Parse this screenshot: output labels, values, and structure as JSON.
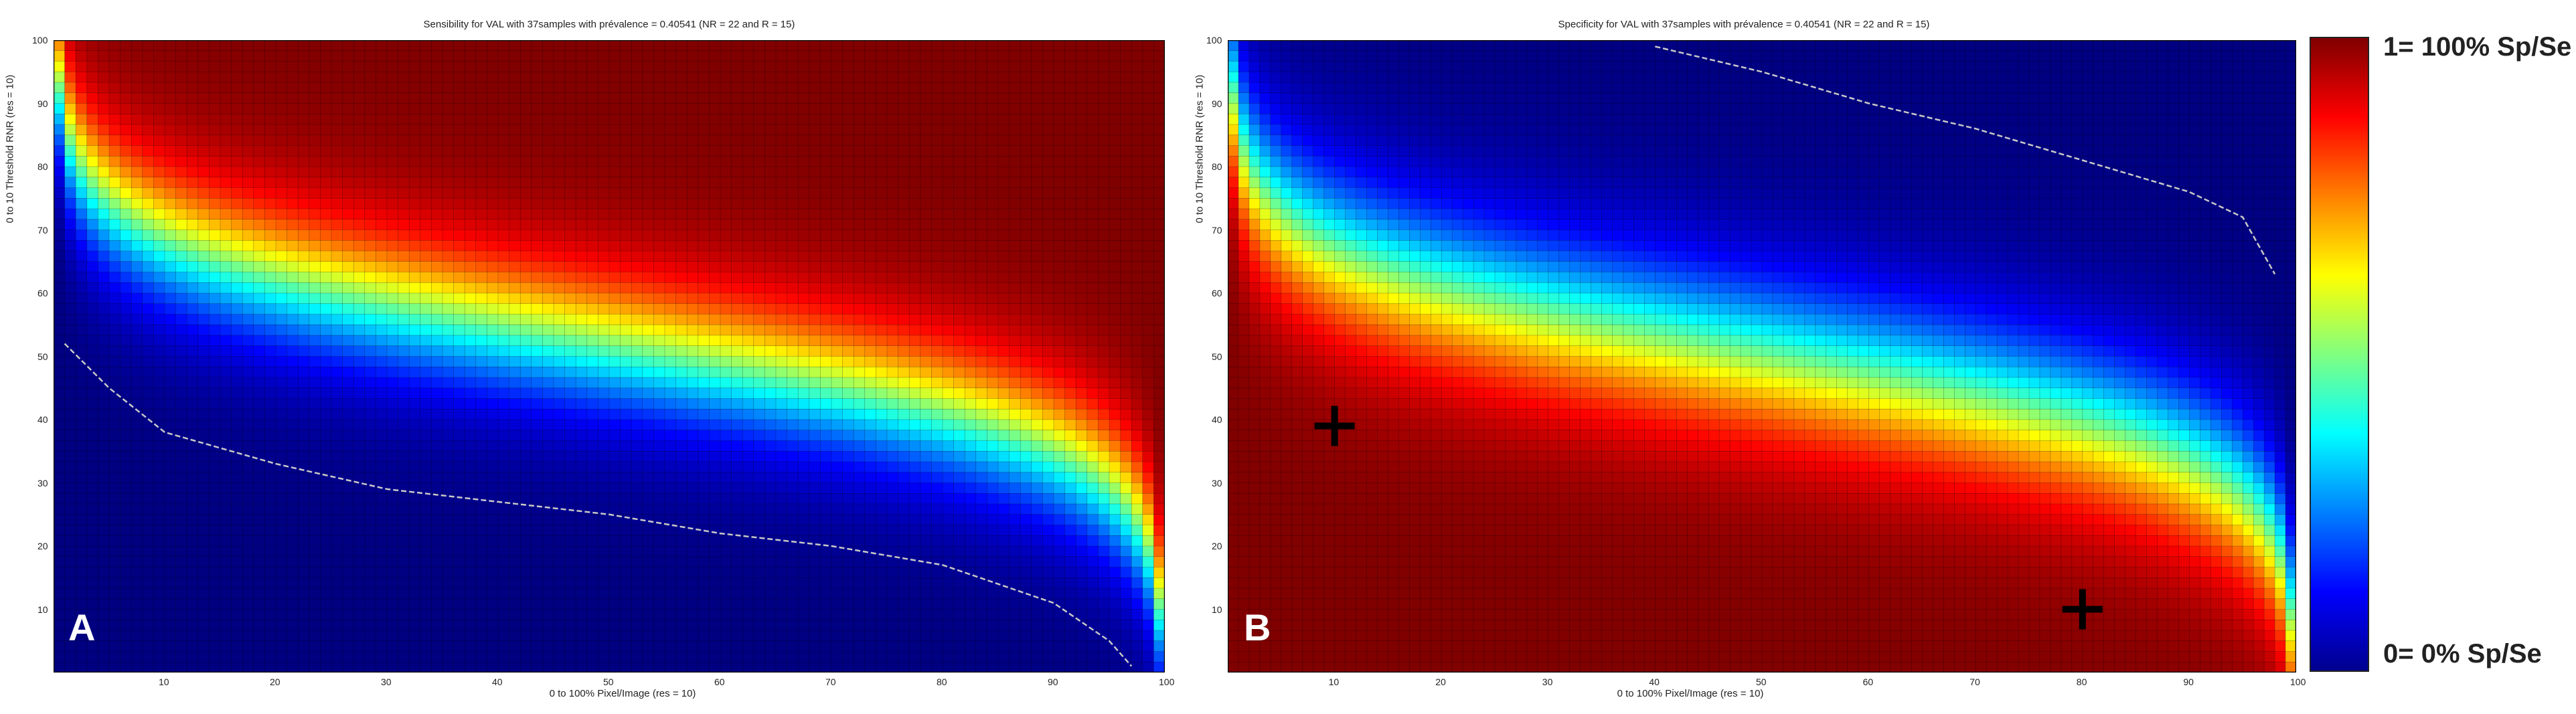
{
  "chart_data": [
    {
      "type": "heatmap",
      "panel_label": "A",
      "title": "Sensibility for VAL with 37samples with prévalence = 0.40541 (NR = 22 and R = 15)",
      "xlabel": "0 to 100% Pixel/Image (res = 10)",
      "ylabel": "0 to 10 Threshold RNR (res = 10)",
      "xlim": [
        0,
        100
      ],
      "ylim": [
        0,
        100
      ],
      "xticks": [
        10,
        20,
        30,
        40,
        50,
        60,
        70,
        80,
        90,
        100
      ],
      "yticks": [
        10,
        20,
        30,
        40,
        50,
        60,
        70,
        80,
        90,
        100
      ],
      "value_range": [
        0,
        1
      ],
      "metric": "sensitivity",
      "boundary_curve": [
        [
          1,
          52
        ],
        [
          5,
          45
        ],
        [
          10,
          38
        ],
        [
          20,
          33
        ],
        [
          30,
          29
        ],
        [
          40,
          27
        ],
        [
          50,
          25
        ],
        [
          60,
          22
        ],
        [
          70,
          20
        ],
        [
          80,
          17
        ],
        [
          90,
          11
        ],
        [
          95,
          5
        ],
        [
          97,
          1
        ]
      ],
      "grid": true
    },
    {
      "type": "heatmap",
      "panel_label": "B",
      "title": "Specificity for VAL with 37samples with prévalence = 0.40541 (NR = 22 and R = 15)",
      "xlabel": "0 to 100% Pixel/Image (res = 10)",
      "ylabel": "0 to 10 Threshold RNR (res = 10)",
      "xlim": [
        0,
        100
      ],
      "ylim": [
        0,
        100
      ],
      "xticks": [
        10,
        20,
        30,
        40,
        50,
        60,
        70,
        80,
        90,
        100
      ],
      "yticks": [
        10,
        20,
        30,
        40,
        50,
        60,
        70,
        80,
        90,
        100
      ],
      "value_range": [
        0,
        1
      ],
      "metric": "specificity",
      "boundary_curve": [
        [
          40,
          99
        ],
        [
          50,
          95
        ],
        [
          60,
          90
        ],
        [
          70,
          86
        ],
        [
          80,
          81
        ],
        [
          90,
          76
        ],
        [
          95,
          72
        ],
        [
          98,
          63
        ]
      ],
      "markers": [
        {
          "x": 10,
          "y": 39
        },
        {
          "x": 80,
          "y": 10
        }
      ],
      "grid": true
    }
  ],
  "colorbar": {
    "top_label": "1= 100% Sp/Se",
    "bottom_label": "0= 0% Sp/Se",
    "colors": [
      "#800000",
      "#ff0000",
      "#ff8000",
      "#ffff00",
      "#80ff80",
      "#00ffff",
      "#0080ff",
      "#0000ff",
      "#00008f"
    ]
  }
}
